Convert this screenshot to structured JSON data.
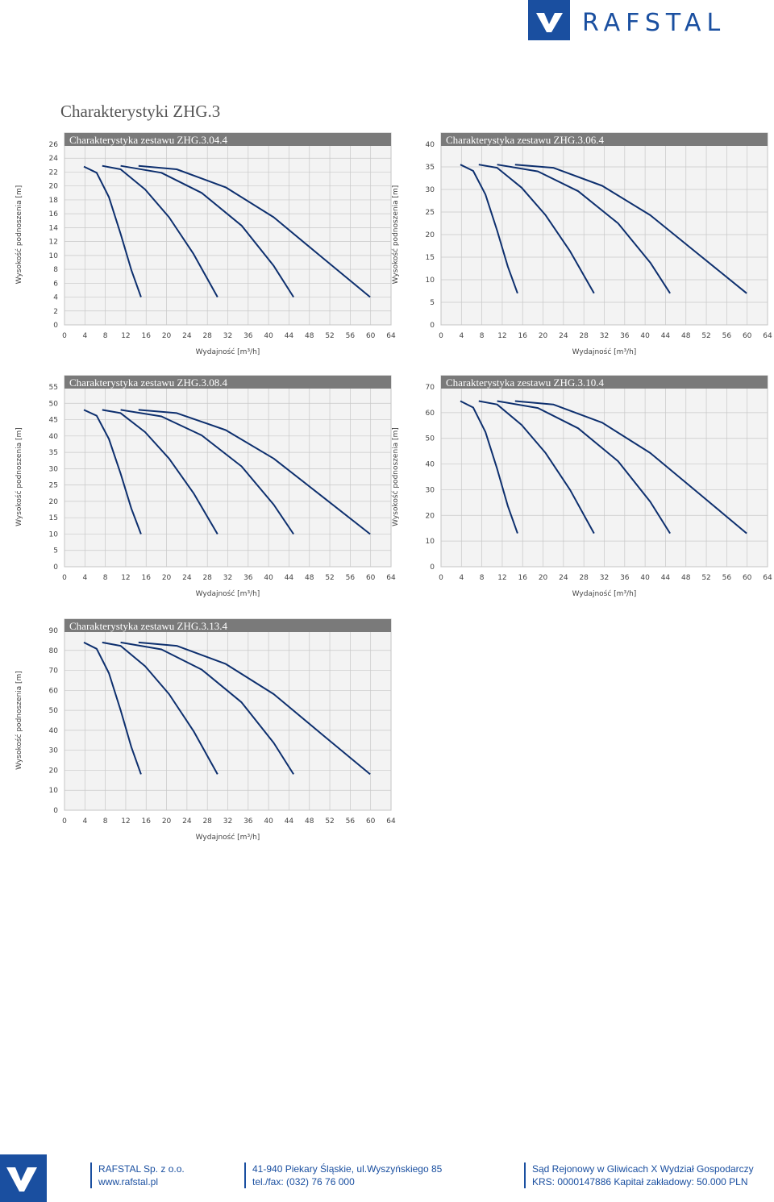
{
  "header": {
    "logo": "RAFSTAL"
  },
  "title": "Charakterystyki ZHG.3",
  "chart_data": [
    {
      "type": "line",
      "title": "Charakterystyka zestawu ZHG.3.04.4",
      "xlabel": "Wydajność [m³/h]",
      "ylabel": "Wysokość podnoszenia [m]",
      "xlim": [
        0,
        64
      ],
      "xticks": [
        0,
        4,
        8,
        12,
        16,
        20,
        24,
        28,
        32,
        36,
        40,
        44,
        48,
        52,
        56,
        60,
        64
      ],
      "ylim": [
        0,
        26
      ],
      "yticks": [
        0,
        2,
        4,
        6,
        8,
        10,
        12,
        14,
        16,
        18,
        20,
        22,
        24,
        26
      ],
      "grid": true,
      "series": [
        {
          "color": "#0d2f6e",
          "x": [
            3.8,
            6.3,
            8.7,
            11,
            13.1,
            15
          ],
          "values": [
            22.8,
            21.9,
            18.4,
            13.1,
            7.9,
            4
          ]
        },
        {
          "color": "#0d2f6e",
          "x": [
            7.4,
            11,
            15.8,
            20.5,
            25.3,
            30
          ],
          "values": [
            22.9,
            22.4,
            19.5,
            15.5,
            10.2,
            4
          ]
        },
        {
          "color": "#0d2f6e",
          "x": [
            11,
            19,
            26.9,
            34.7,
            41,
            44.9
          ],
          "values": [
            22.9,
            21.9,
            19,
            14.3,
            8.5,
            4
          ]
        },
        {
          "color": "#0d2f6e",
          "x": [
            14.5,
            22,
            31.6,
            41,
            50.5,
            59.9
          ],
          "values": [
            22.9,
            22.4,
            19.8,
            15.5,
            9.7,
            4
          ]
        }
      ]
    },
    {
      "type": "line",
      "title": "Charakterystyka zestawu ZHG.3.06.4",
      "xlabel": "Wydajność [m³/h]",
      "ylabel": "Wysokość podnoszenia [m]",
      "xlim": [
        0,
        64
      ],
      "xticks": [
        0,
        4,
        8,
        12,
        16,
        20,
        24,
        28,
        32,
        36,
        40,
        44,
        48,
        52,
        56,
        60,
        64
      ],
      "ylim": [
        0,
        40
      ],
      "yticks": [
        0,
        5,
        10,
        15,
        20,
        25,
        30,
        35,
        40
      ],
      "grid": true,
      "series": [
        {
          "color": "#0d2f6e",
          "x": [
            3.8,
            6.3,
            8.7,
            11,
            13.1,
            15
          ],
          "values": [
            35.5,
            34.1,
            28.9,
            20.9,
            12.9,
            7
          ]
        },
        {
          "color": "#0d2f6e",
          "x": [
            7.4,
            11,
            15.8,
            20.5,
            25.3,
            30
          ],
          "values": [
            35.5,
            34.8,
            30.4,
            24.3,
            16.3,
            7
          ]
        },
        {
          "color": "#0d2f6e",
          "x": [
            11,
            19,
            26.9,
            34.7,
            41,
            44.9
          ],
          "values": [
            35.5,
            34,
            29.6,
            22.5,
            13.8,
            7
          ]
        },
        {
          "color": "#0d2f6e",
          "x": [
            14.5,
            22,
            31.6,
            41,
            50.5,
            59.9
          ],
          "values": [
            35.5,
            34.8,
            30.8,
            24.3,
            15.6,
            7
          ]
        }
      ]
    },
    {
      "type": "line",
      "title": "Charakterystyka zestawu ZHG.3.08.4",
      "xlabel": "Wydajność [m³/h]",
      "ylabel": "Wysokość podnoszenia [m]",
      "xlim": [
        0,
        64
      ],
      "xticks": [
        0,
        4,
        8,
        12,
        16,
        20,
        24,
        28,
        32,
        36,
        40,
        44,
        48,
        52,
        56,
        60,
        64
      ],
      "ylim": [
        0,
        55
      ],
      "yticks": [
        0,
        5,
        10,
        15,
        20,
        25,
        30,
        35,
        40,
        45,
        50,
        55
      ],
      "grid": true,
      "series": [
        {
          "color": "#0d2f6e",
          "x": [
            3.8,
            6.3,
            8.7,
            11,
            13.1,
            15
          ],
          "values": [
            48,
            46.2,
            39.1,
            28.5,
            17.8,
            10
          ]
        },
        {
          "color": "#0d2f6e",
          "x": [
            7.4,
            11,
            15.8,
            20.5,
            25.3,
            30
          ],
          "values": [
            48,
            47,
            41.2,
            33.1,
            22.5,
            10
          ]
        },
        {
          "color": "#0d2f6e",
          "x": [
            11,
            19,
            26.9,
            34.7,
            41,
            44.9
          ],
          "values": [
            48,
            46,
            40.2,
            30.7,
            19,
            10
          ]
        },
        {
          "color": "#0d2f6e",
          "x": [
            14.5,
            22,
            31.6,
            41,
            50.5,
            59.9
          ],
          "values": [
            48,
            47,
            41.8,
            33.1,
            21.5,
            10
          ]
        }
      ]
    },
    {
      "type": "line",
      "title": "Charakterystyka zestawu ZHG.3.10.4",
      "xlabel": "Wydajność [m³/h]",
      "ylabel": "Wysokość podnoszenia [m]",
      "xlim": [
        0,
        64
      ],
      "xticks": [
        0,
        4,
        8,
        12,
        16,
        20,
        24,
        28,
        32,
        36,
        40,
        44,
        48,
        52,
        56,
        60,
        64
      ],
      "ylim": [
        0,
        70
      ],
      "yticks": [
        0,
        10,
        20,
        30,
        40,
        50,
        60,
        70
      ],
      "grid": true,
      "series": [
        {
          "color": "#0d2f6e",
          "x": [
            3.8,
            6.3,
            8.7,
            11,
            13.1,
            15
          ],
          "values": [
            64.5,
            62,
            52.5,
            38.1,
            23.6,
            13
          ]
        },
        {
          "color": "#0d2f6e",
          "x": [
            7.4,
            11,
            15.8,
            20.5,
            25.3,
            30
          ],
          "values": [
            64.5,
            63.2,
            55.2,
            44.3,
            29.9,
            13
          ]
        },
        {
          "color": "#0d2f6e",
          "x": [
            11,
            19,
            26.9,
            34.7,
            41,
            44.9
          ],
          "values": [
            64.5,
            61.8,
            53.9,
            41.1,
            25.3,
            13
          ]
        },
        {
          "color": "#0d2f6e",
          "x": [
            14.5,
            22,
            31.6,
            41,
            50.5,
            59.9
          ],
          "values": [
            64.5,
            63.2,
            56.1,
            44.3,
            28.6,
            13
          ]
        }
      ]
    },
    {
      "type": "line",
      "title": "Charakterystyka zestawu ZHG.3.13.4",
      "xlabel": "Wydajność [m³/h]",
      "ylabel": "Wysokość podnoszenia [m]",
      "xlim": [
        0,
        64
      ],
      "xticks": [
        0,
        4,
        8,
        12,
        16,
        20,
        24,
        28,
        32,
        36,
        40,
        44,
        48,
        52,
        56,
        60,
        64
      ],
      "ylim": [
        0,
        90
      ],
      "yticks": [
        0,
        10,
        20,
        30,
        40,
        50,
        60,
        70,
        80,
        90
      ],
      "grid": true,
      "series": [
        {
          "color": "#0d2f6e",
          "x": [
            3.8,
            6.3,
            8.7,
            11,
            13.1,
            15
          ],
          "values": [
            84,
            80.8,
            68.6,
            50.1,
            31.6,
            18
          ]
        },
        {
          "color": "#0d2f6e",
          "x": [
            7.4,
            11,
            15.8,
            20.5,
            25.3,
            30
          ],
          "values": [
            84,
            82.3,
            72.1,
            58.1,
            39.6,
            18
          ]
        },
        {
          "color": "#0d2f6e",
          "x": [
            11,
            19,
            26.9,
            34.7,
            41,
            44.9
          ],
          "values": [
            84,
            80.5,
            70.4,
            54,
            33.7,
            18
          ]
        },
        {
          "color": "#0d2f6e",
          "x": [
            14.5,
            22,
            31.6,
            41,
            50.5,
            59.9
          ],
          "values": [
            84,
            82.3,
            73.2,
            58.1,
            37.9,
            18
          ]
        }
      ]
    }
  ],
  "footer": {
    "company": [
      "RAFSTAL Sp. z o.o.",
      "www.rafstal.pl"
    ],
    "address": [
      "41-940 Piekary Śląskie, ul.Wyszyńskiego 85",
      "tel./fax: (032) 76 76 000"
    ],
    "registry": [
      "Sąd Rejonowy w Gliwicach X Wydział Gospodarczy",
      "KRS: 0000147886 Kapitał zakładowy: 50.000 PLN"
    ]
  }
}
